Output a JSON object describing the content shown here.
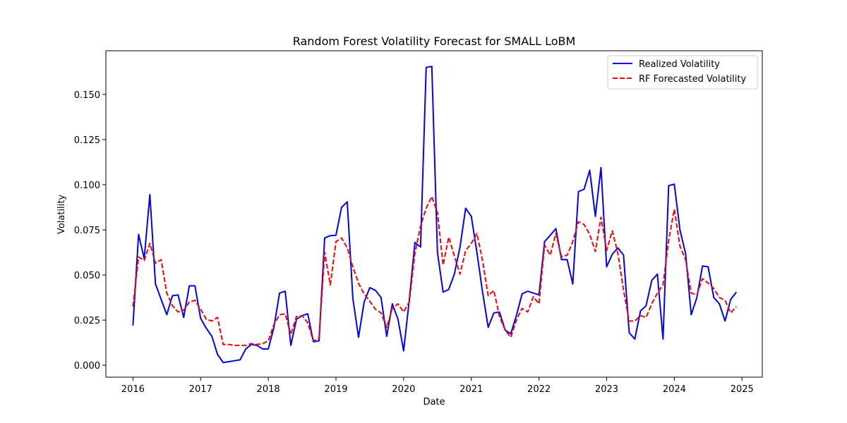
{
  "chart_data": {
    "type": "line",
    "title": "Random Forest Volatility Forecast for SMALL LoBM",
    "xlabel": "Date",
    "ylabel": "Volatility",
    "xlim": [
      2015.6,
      2025.3
    ],
    "ylim": [
      -0.0066,
      0.1742
    ],
    "x_ticks": [
      2016,
      2017,
      2018,
      2019,
      2020,
      2021,
      2022,
      2023,
      2024,
      2025
    ],
    "x_tick_labels": [
      "2016",
      "2017",
      "2018",
      "2019",
      "2020",
      "2021",
      "2022",
      "2023",
      "2024",
      "2025"
    ],
    "y_ticks": [
      0.0,
      0.025,
      0.05,
      0.075,
      0.1,
      0.125,
      0.15
    ],
    "y_tick_labels": [
      "0.000",
      "0.025",
      "0.050",
      "0.075",
      "0.100",
      "0.125",
      "0.150"
    ],
    "grid": false,
    "legend_position": "upper right",
    "x_start": 2016.0,
    "x_step": 0.08333,
    "series": [
      {
        "name": "Realized Volatility",
        "color": "#0000ff",
        "style": "solid",
        "values": [
          0.022,
          0.0725,
          0.059,
          0.0945,
          0.045,
          0.0365,
          0.028,
          0.0385,
          0.039,
          0.0265,
          0.044,
          0.044,
          0.026,
          0.0205,
          0.016,
          0.006,
          0.0015,
          0.002,
          0.0025,
          0.003,
          0.009,
          0.0115,
          0.011,
          0.009,
          0.009,
          0.021,
          0.04,
          0.041,
          0.011,
          0.0255,
          0.0275,
          0.0285,
          0.013,
          0.0135,
          0.0705,
          0.0718,
          0.072,
          0.0875,
          0.0905,
          0.037,
          0.0155,
          0.035,
          0.043,
          0.0415,
          0.0375,
          0.016,
          0.034,
          0.0255,
          0.008,
          0.036,
          0.068,
          0.0655,
          0.165,
          0.1655,
          0.0625,
          0.0405,
          0.042,
          0.0505,
          0.0655,
          0.087,
          0.0825,
          0.0625,
          0.0405,
          0.021,
          0.029,
          0.0295,
          0.0195,
          0.0175,
          0.0275,
          0.0395,
          0.041,
          0.04,
          0.039,
          0.0685,
          0.072,
          0.0757,
          0.0585,
          0.0585,
          0.045,
          0.0962,
          0.0975,
          0.108,
          0.0825,
          0.1095,
          0.0545,
          0.0615,
          0.065,
          0.061,
          0.018,
          0.0145,
          0.03,
          0.033,
          0.047,
          0.0505,
          0.0145,
          0.0995,
          0.1003,
          0.075,
          0.062,
          0.028,
          0.0375,
          0.055,
          0.0545,
          0.0375,
          0.034,
          0.0245,
          0.0365,
          0.0405
        ]
      },
      {
        "name": "RF Forecasted Volatility",
        "color": "#ff0000",
        "style": "dashed",
        "values": [
          0.0325,
          0.06,
          0.058,
          0.0675,
          0.0565,
          0.0585,
          0.04,
          0.033,
          0.0295,
          0.0305,
          0.035,
          0.036,
          0.031,
          0.0255,
          0.0245,
          0.0265,
          0.0115,
          0.0115,
          0.011,
          0.011,
          0.011,
          0.012,
          0.0115,
          0.012,
          0.0135,
          0.0225,
          0.028,
          0.0285,
          0.017,
          0.027,
          0.0275,
          0.0235,
          0.0135,
          0.015,
          0.0625,
          0.0445,
          0.0685,
          0.0705,
          0.065,
          0.0545,
          0.0455,
          0.0395,
          0.0355,
          0.031,
          0.029,
          0.021,
          0.0315,
          0.034,
          0.0295,
          0.035,
          0.062,
          0.077,
          0.087,
          0.0935,
          0.0845,
          0.0555,
          0.071,
          0.0605,
          0.0505,
          0.0635,
          0.0675,
          0.073,
          0.058,
          0.0385,
          0.0415,
          0.027,
          0.0195,
          0.0155,
          0.025,
          0.0315,
          0.0295,
          0.038,
          0.034,
          0.0665,
          0.061,
          0.073,
          0.06,
          0.061,
          0.0685,
          0.0795,
          0.078,
          0.0725,
          0.063,
          0.082,
          0.0635,
          0.0745,
          0.062,
          0.0415,
          0.0245,
          0.0245,
          0.0275,
          0.0265,
          0.034,
          0.04,
          0.0445,
          0.069,
          0.0865,
          0.066,
          0.0585,
          0.04,
          0.039,
          0.048,
          0.0455,
          0.0425,
          0.0375,
          0.036,
          0.029,
          0.0325
        ]
      }
    ]
  }
}
